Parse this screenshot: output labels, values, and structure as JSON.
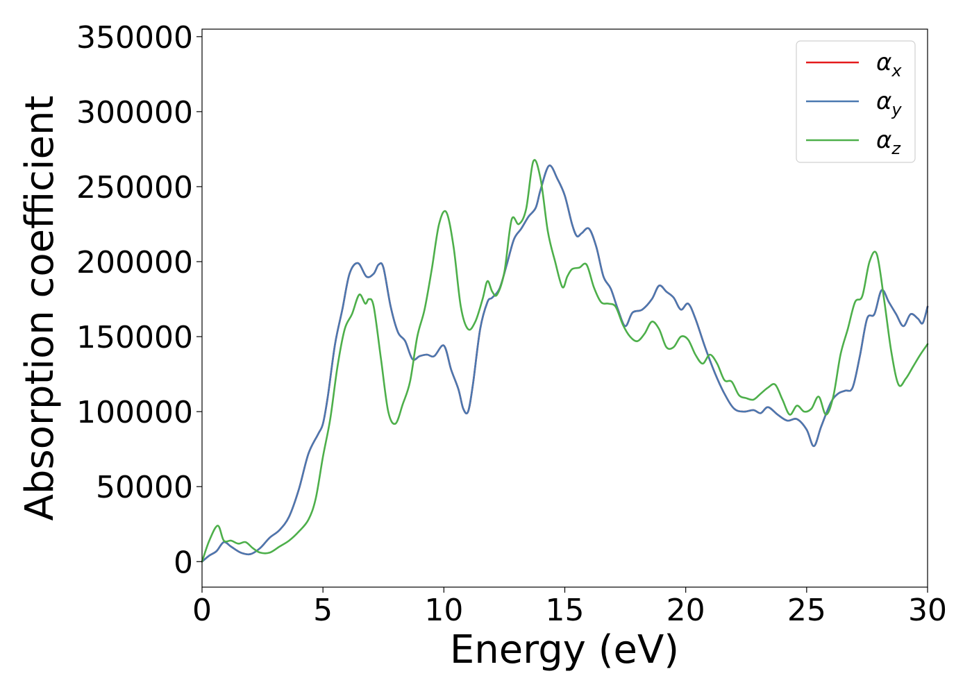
{
  "chart_data": {
    "type": "line",
    "title": "",
    "xlabel": "Energy (eV)",
    "ylabel": "Absorption coefficient",
    "xlim": [
      0,
      30
    ],
    "ylim": [
      -17000,
      355000
    ],
    "xticks": [
      0,
      5,
      10,
      15,
      20,
      25,
      30
    ],
    "yticks": [
      0,
      50000,
      100000,
      150000,
      200000,
      250000,
      300000,
      350000
    ],
    "grid": false,
    "legend_position": "top-right",
    "series": [
      {
        "name": "αx",
        "legend_base": "α",
        "legend_sub": "x",
        "color": "#e41a1c",
        "x": [
          0,
          0.3,
          0.6,
          0.9,
          1.2,
          1.6,
          2.0,
          2.4,
          2.8,
          3.2,
          3.6,
          4.0,
          4.4,
          4.8,
          5.0,
          5.2,
          5.5,
          5.8,
          6.1,
          6.45,
          6.8,
          7.1,
          7.3,
          7.5,
          7.8,
          8.1,
          8.4,
          8.7,
          9.0,
          9.3,
          9.6,
          10.0,
          10.3,
          10.6,
          10.8,
          11.0,
          11.2,
          11.5,
          11.8,
          12.0,
          12.3,
          12.6,
          12.9,
          13.2,
          13.5,
          13.8,
          14.0,
          14.35,
          14.7,
          15.0,
          15.3,
          15.5,
          15.7,
          16.0,
          16.3,
          16.6,
          16.9,
          17.2,
          17.5,
          17.8,
          18.2,
          18.6,
          18.9,
          19.2,
          19.5,
          19.8,
          20.1,
          20.4,
          20.8,
          21.2,
          21.6,
          22.0,
          22.4,
          22.8,
          23.1,
          23.4,
          23.8,
          24.2,
          24.6,
          25.0,
          25.3,
          25.6,
          26.0,
          26.3,
          26.6,
          26.9,
          27.2,
          27.5,
          27.8,
          28.1,
          28.4,
          28.7,
          29.0,
          29.3,
          29.6,
          29.8,
          30.0
        ],
        "y": [
          0,
          4000,
          7000,
          13000,
          10000,
          6000,
          5000,
          9000,
          16000,
          21000,
          30000,
          48000,
          72000,
          85000,
          92000,
          110000,
          145000,
          168000,
          192000,
          199000,
          190000,
          192000,
          198000,
          196000,
          170000,
          153000,
          147000,
          135000,
          137000,
          138000,
          137000,
          144000,
          128000,
          115000,
          102000,
          100000,
          118000,
          155000,
          173000,
          176000,
          182000,
          198000,
          215000,
          222000,
          230000,
          236000,
          248000,
          264000,
          255000,
          244000,
          225000,
          217000,
          219000,
          222000,
          210000,
          190000,
          182000,
          168000,
          157000,
          166000,
          168000,
          175000,
          184000,
          180000,
          176000,
          168000,
          172000,
          162000,
          143000,
          126000,
          112000,
          102000,
          100000,
          101000,
          99000,
          103000,
          98000,
          94000,
          95000,
          88000,
          77000,
          90000,
          106000,
          112000,
          114000,
          116000,
          137000,
          162000,
          165000,
          181000,
          173000,
          165000,
          157000,
          165000,
          162000,
          159000,
          170000
        ]
      },
      {
        "name": "αy",
        "legend_base": "α",
        "legend_sub": "y",
        "color": "#4a78b0",
        "x": [
          0,
          0.3,
          0.6,
          0.9,
          1.2,
          1.6,
          2.0,
          2.4,
          2.8,
          3.2,
          3.6,
          4.0,
          4.4,
          4.8,
          5.0,
          5.2,
          5.5,
          5.8,
          6.1,
          6.45,
          6.8,
          7.1,
          7.3,
          7.5,
          7.8,
          8.1,
          8.4,
          8.7,
          9.0,
          9.3,
          9.6,
          10.0,
          10.3,
          10.6,
          10.8,
          11.0,
          11.2,
          11.5,
          11.8,
          12.0,
          12.3,
          12.6,
          12.9,
          13.2,
          13.5,
          13.8,
          14.0,
          14.35,
          14.7,
          15.0,
          15.3,
          15.5,
          15.7,
          16.0,
          16.3,
          16.6,
          16.9,
          17.2,
          17.5,
          17.8,
          18.2,
          18.6,
          18.9,
          19.2,
          19.5,
          19.8,
          20.1,
          20.4,
          20.8,
          21.2,
          21.6,
          22.0,
          22.4,
          22.8,
          23.1,
          23.4,
          23.8,
          24.2,
          24.6,
          25.0,
          25.3,
          25.6,
          26.0,
          26.3,
          26.6,
          26.9,
          27.2,
          27.5,
          27.8,
          28.1,
          28.4,
          28.7,
          29.0,
          29.3,
          29.6,
          29.8,
          30.0
        ],
        "y": [
          0,
          4000,
          7000,
          13000,
          10000,
          6000,
          5000,
          9000,
          16000,
          21000,
          30000,
          48000,
          72000,
          85000,
          92000,
          110000,
          145000,
          168000,
          192000,
          199000,
          190000,
          192000,
          198000,
          196000,
          170000,
          153000,
          147000,
          135000,
          137000,
          138000,
          137000,
          144000,
          128000,
          115000,
          102000,
          100000,
          118000,
          155000,
          173000,
          176000,
          182000,
          198000,
          215000,
          222000,
          230000,
          236000,
          248000,
          264000,
          255000,
          244000,
          225000,
          217000,
          219000,
          222000,
          210000,
          190000,
          182000,
          168000,
          157000,
          166000,
          168000,
          175000,
          184000,
          180000,
          176000,
          168000,
          172000,
          162000,
          143000,
          126000,
          112000,
          102000,
          100000,
          101000,
          99000,
          103000,
          98000,
          94000,
          95000,
          88000,
          77000,
          90000,
          106000,
          112000,
          114000,
          116000,
          137000,
          162000,
          165000,
          181000,
          173000,
          165000,
          157000,
          165000,
          162000,
          159000,
          170000
        ]
      },
      {
        "name": "αz",
        "legend_base": "α",
        "legend_sub": "z",
        "color": "#4daf4a",
        "x": [
          0,
          0.3,
          0.65,
          0.9,
          1.2,
          1.5,
          1.8,
          2.1,
          2.4,
          2.8,
          3.2,
          3.6,
          4.0,
          4.4,
          4.7,
          5.0,
          5.3,
          5.6,
          5.9,
          6.2,
          6.5,
          6.75,
          6.9,
          7.1,
          7.4,
          7.7,
          8.0,
          8.3,
          8.6,
          8.9,
          9.2,
          9.5,
          9.8,
          10.1,
          10.4,
          10.7,
          11.0,
          11.3,
          11.6,
          11.8,
          12.0,
          12.2,
          12.5,
          12.8,
          13.1,
          13.4,
          13.7,
          14.0,
          14.3,
          14.6,
          14.9,
          15.1,
          15.3,
          15.6,
          15.9,
          16.2,
          16.5,
          16.8,
          17.1,
          17.4,
          17.7,
          18.0,
          18.3,
          18.6,
          18.9,
          19.2,
          19.5,
          19.8,
          20.1,
          20.4,
          20.7,
          21.0,
          21.3,
          21.6,
          21.9,
          22.2,
          22.5,
          22.8,
          23.1,
          23.4,
          23.7,
          24.0,
          24.3,
          24.6,
          24.9,
          25.2,
          25.5,
          25.8,
          26.1,
          26.4,
          26.7,
          27.0,
          27.3,
          27.6,
          27.9,
          28.2,
          28.5,
          28.8,
          29.1,
          29.4,
          29.7,
          30.0
        ],
        "y": [
          0,
          14000,
          24000,
          14000,
          14000,
          12000,
          13000,
          9000,
          6000,
          6000,
          10000,
          14000,
          20000,
          28000,
          42000,
          70000,
          95000,
          130000,
          155000,
          165000,
          178000,
          172000,
          175000,
          170000,
          135000,
          100000,
          92000,
          105000,
          120000,
          150000,
          168000,
          195000,
          225000,
          233000,
          210000,
          170000,
          155000,
          160000,
          175000,
          187000,
          180000,
          178000,
          193000,
          228000,
          225000,
          235000,
          267000,
          255000,
          220000,
          200000,
          183000,
          190000,
          195000,
          196000,
          198000,
          183000,
          173000,
          172000,
          170000,
          158000,
          150000,
          147000,
          152000,
          160000,
          155000,
          143000,
          143000,
          150000,
          148000,
          138000,
          132000,
          138000,
          132000,
          121000,
          120000,
          111000,
          109000,
          108000,
          112000,
          116000,
          118000,
          108000,
          98000,
          104000,
          100000,
          102000,
          110000,
          98000,
          110000,
          138000,
          155000,
          173000,
          177000,
          200000,
          205000,
          175000,
          140000,
          118000,
          122000,
          130000,
          138000,
          145000
        ]
      }
    ]
  }
}
